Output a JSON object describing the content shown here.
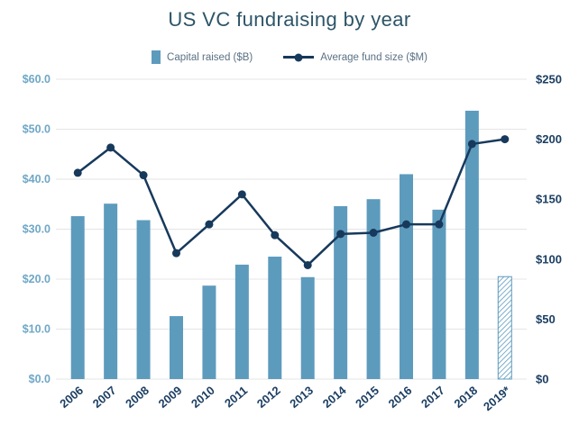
{
  "title": "US VC fundraising by year",
  "legend": [
    {
      "label": "Capital raised ($B)",
      "marker": "bar-swatch"
    },
    {
      "label": "Average fund size ($M)",
      "marker": "line-dot-swatch"
    }
  ],
  "chart_data": {
    "type": "combo-bar-line",
    "title": "US VC fundraising by year",
    "categories": [
      "2006",
      "2007",
      "2008",
      "2009",
      "2010",
      "2011",
      "2012",
      "2013",
      "2014",
      "2015",
      "2016",
      "2017",
      "2018",
      "2019*"
    ],
    "series": [
      {
        "name": "Capital raised ($B)",
        "type": "bar",
        "axis": "left",
        "values": [
          32.6,
          35.1,
          31.8,
          12.6,
          18.7,
          22.9,
          24.5,
          20.4,
          34.6,
          36.0,
          41.0,
          33.9,
          53.7,
          20.5
        ],
        "hatched_index": 13
      },
      {
        "name": "Average fund size ($M)",
        "type": "line",
        "axis": "right",
        "values": [
          172,
          193,
          170,
          105,
          129,
          154,
          120,
          95,
          121,
          122,
          129,
          129,
          196,
          200
        ]
      }
    ],
    "left_axis": {
      "min": 0,
      "max": 60,
      "ticks": [
        0,
        10,
        20,
        30,
        40,
        50,
        60
      ],
      "tick_labels": [
        "$0.0",
        "$10.0",
        "$20.0",
        "$30.0",
        "$40.0",
        "$50.0",
        "$60.0"
      ]
    },
    "right_axis": {
      "min": 0,
      "max": 250,
      "ticks": [
        0,
        50,
        100,
        150,
        200,
        250
      ],
      "tick_labels": [
        "$0",
        "$50",
        "$100",
        "$150",
        "$200",
        "$250"
      ]
    },
    "grid": true,
    "legend_position": "top",
    "colors": {
      "bar": "#5d9bbd",
      "line": "#17395c",
      "grid": "#e4e4e4",
      "left_tick": "#6fa7c7",
      "right_tick": "#1c3f63",
      "x_tick": "#1c3f63",
      "title": "#2d5568",
      "legend_text": "#5a7184",
      "background": "#ffffff"
    }
  }
}
